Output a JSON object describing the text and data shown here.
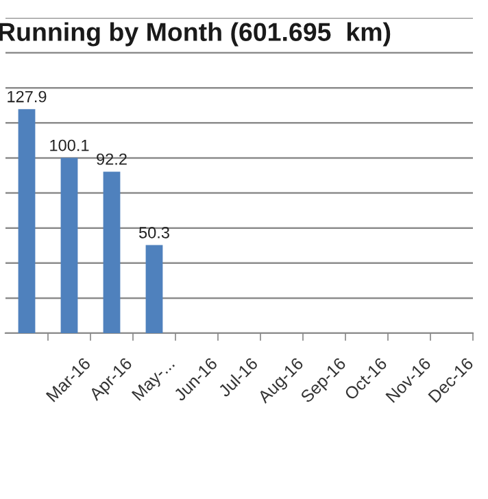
{
  "chart_data": {
    "type": "bar",
    "title": "Running by Month (601.695  km)",
    "categories": [
      null,
      "Mar-16",
      "Apr-16",
      "May-...",
      "Jun-16",
      "Jul-16",
      "Aug-16",
      "Sep-16",
      "Oct-16",
      "Nov-16",
      "Dec-16"
    ],
    "series": [
      {
        "color": "#4f81bd",
        "values": [
          127.9,
          100.1,
          92.2,
          50.3,
          null,
          null,
          null,
          null,
          null,
          null,
          null
        ],
        "value_labels": [
          "127.9",
          "100.1",
          "92.2",
          "50.3",
          null,
          null,
          null,
          null,
          null,
          null,
          null
        ]
      }
    ],
    "ylim": [
      0,
      180
    ],
    "yticks": [
      {
        "value": 0,
        "label": null
      },
      {
        "value": 20,
        "label": null
      },
      {
        "value": 40,
        "label": null
      },
      {
        "value": 60,
        "label": null
      },
      {
        "value": 80,
        "label": null
      },
      {
        "value": 100,
        "label": null
      },
      {
        "value": 120,
        "label": null
      },
      {
        "value": 140,
        "label": null
      },
      {
        "value": 160,
        "label": null
      },
      {
        "value": 180,
        "label": null
      }
    ],
    "grid": "y",
    "tick_labels": "x"
  }
}
